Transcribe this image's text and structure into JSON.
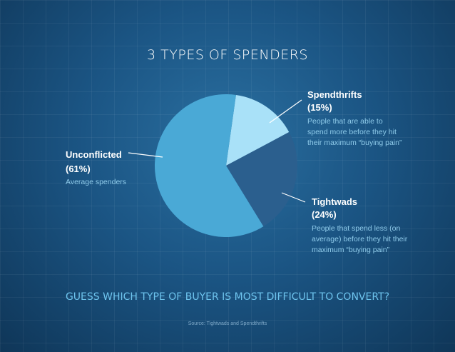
{
  "chart_data": {
    "type": "pie",
    "title": "3 TYPES OF SPENDERS",
    "categories": [
      "Spendthrifts",
      "Tightwads",
      "Unconflicted"
    ],
    "values": [
      15,
      24,
      61
    ],
    "value_labels": [
      "(15%)",
      "(24%)",
      "(61%)"
    ],
    "descriptions": [
      "People that are able to spend more before they hit their maximum “buying pain”",
      "People that spend less (on average) before they hit their maximum “buying pain”",
      "Average spenders"
    ],
    "colors": [
      "#a9e1f8",
      "#2b5f8e",
      "#4aa9d6"
    ],
    "question": "GUESS WHICH TYPE OF BUYER IS MOST DIFFICULT TO CONVERT?",
    "source": "Source: Tightwads and Spendthrifts"
  }
}
